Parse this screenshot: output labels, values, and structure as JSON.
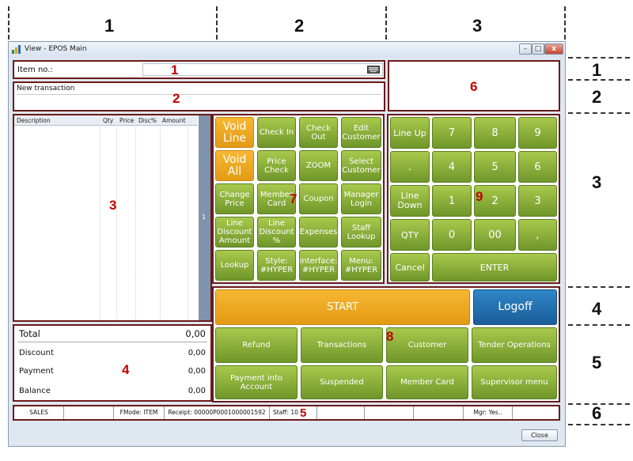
{
  "column_labels": [
    "1",
    "2",
    "3"
  ],
  "row_labels": [
    "1",
    "2",
    "3",
    "4",
    "5",
    "6"
  ],
  "window": {
    "title": "View - EPOS Main",
    "minimize": "–",
    "maximize": "□",
    "close_x": "x"
  },
  "item_panel": {
    "label": "Item no.:",
    "value": "",
    "marker": "1"
  },
  "transaction_panel": {
    "text": "New transaction",
    "marker": "2"
  },
  "customer_panel": {
    "marker": "6"
  },
  "journal": {
    "headers": [
      "Description",
      "Qty",
      "Price",
      "Disc%",
      "Amount"
    ],
    "marker": "3",
    "page_indicator": "1"
  },
  "totals": {
    "marker": "4",
    "rows": [
      {
        "label": "Total",
        "value": "0,00"
      },
      {
        "label": "Discount",
        "value": "0,00"
      },
      {
        "label": "Payment",
        "value": "0,00"
      },
      {
        "label": "Balance",
        "value": "0,00"
      }
    ]
  },
  "function_buttons": {
    "marker": "7",
    "row1": [
      "Void Line",
      "Check In",
      "Check Out",
      "Edit Customer"
    ],
    "row2": [
      "Void All",
      "Price Check",
      "ZOOM",
      "Select Customer"
    ],
    "row3": [
      "Change Price",
      "Member Card",
      "Coupon",
      "Manager Login"
    ],
    "row4": [
      "Line Discount Amount",
      "Line Discount %",
      "Expenses",
      "Staff Lookup"
    ],
    "row5": [
      "Lookup",
      "Style: #HYPER",
      "Interface: #HYPER",
      "Menu: #HYPER"
    ]
  },
  "numpad": {
    "marker": "9",
    "row1": [
      "Line Up",
      "7",
      "8",
      "9"
    ],
    "row2": [
      ".",
      "4",
      "5",
      "6"
    ],
    "row3": [
      "Line Down",
      "1",
      "2",
      "3"
    ],
    "row4": [
      "QTY",
      "0",
      "00",
      ","
    ],
    "cancel": "Cancel",
    "enter": "ENTER"
  },
  "action_buttons": {
    "start": "START",
    "logoff": "Logoff",
    "marker": "8",
    "row1": [
      "Refund",
      "Transactions",
      "Customer",
      "Tender Operations"
    ],
    "row2": [
      "Payment into Account",
      "Suspended",
      "Member Card",
      "Supervisor menu"
    ]
  },
  "status_bar": {
    "marker": "5",
    "mode": "SALES",
    "fmode": "FMode: ITEM",
    "receipt": "Receipt: 00000P0001000001592",
    "staff": "Staff: 10",
    "mgr": "Mgr: Yes.."
  },
  "footer": {
    "close_label": "Close"
  },
  "colors": {
    "green": "#8fb43c",
    "orange": "#f0a91e",
    "blue": "#2271b3",
    "panel_border": "#6b1a1a",
    "marker_red": "#c00000"
  }
}
